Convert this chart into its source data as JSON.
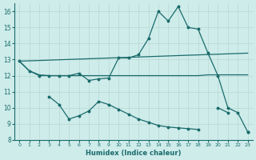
{
  "xlabel": "Humidex (Indice chaleur)",
  "bg_color": "#ceecea",
  "line_color": "#1a6b6b",
  "xlim": [
    -0.5,
    23.5
  ],
  "ylim": [
    8,
    16.5
  ],
  "yticks": [
    8,
    9,
    10,
    11,
    12,
    13,
    14,
    15,
    16
  ],
  "xticks": [
    0,
    1,
    2,
    3,
    4,
    5,
    6,
    7,
    8,
    9,
    10,
    11,
    12,
    13,
    14,
    15,
    16,
    17,
    18,
    19,
    20,
    21,
    22,
    23
  ],
  "line_upper_x": [
    0,
    1,
    2,
    3,
    4,
    5,
    6,
    7,
    8,
    9,
    10,
    11,
    12,
    13,
    14,
    15,
    16,
    17,
    18,
    19,
    20,
    21,
    22,
    23
  ],
  "line_upper_y": [
    12.9,
    12.3,
    12.0,
    12.0,
    12.0,
    12.0,
    12.15,
    11.7,
    11.8,
    11.85,
    13.1,
    13.1,
    13.3,
    14.3,
    16.0,
    15.4,
    16.3,
    15.0,
    14.9,
    13.4,
    12.0,
    10.0,
    9.7,
    8.5
  ],
  "line_flat_x": [
    0,
    1,
    2,
    3,
    4,
    5,
    6,
    7,
    8,
    9,
    10,
    11,
    12,
    13,
    14,
    15,
    16,
    17,
    18,
    19,
    20,
    21,
    22,
    23
  ],
  "line_flat_y": [
    12.9,
    12.3,
    12.05,
    12.0,
    12.0,
    12.0,
    12.0,
    12.0,
    12.0,
    12.0,
    12.0,
    12.0,
    12.0,
    12.0,
    12.0,
    12.0,
    12.0,
    12.0,
    12.0,
    12.05,
    12.05,
    12.05,
    12.05,
    12.05
  ],
  "line_lower_x": [
    0,
    1,
    2,
    3,
    4,
    5,
    6,
    7,
    8,
    9,
    10,
    11,
    12,
    13,
    14,
    15,
    16,
    17,
    18,
    19,
    20,
    21,
    22,
    23
  ],
  "line_lower_y": [
    null,
    null,
    null,
    10.7,
    10.2,
    9.3,
    9.5,
    9.8,
    10.4,
    10.2,
    9.9,
    9.6,
    9.3,
    9.1,
    8.9,
    8.8,
    8.75,
    8.7,
    8.65,
    null,
    10.0,
    9.7,
    null,
    8.5
  ],
  "line_trend_x": [
    0,
    23
  ],
  "line_trend_y": [
    12.9,
    13.4
  ]
}
